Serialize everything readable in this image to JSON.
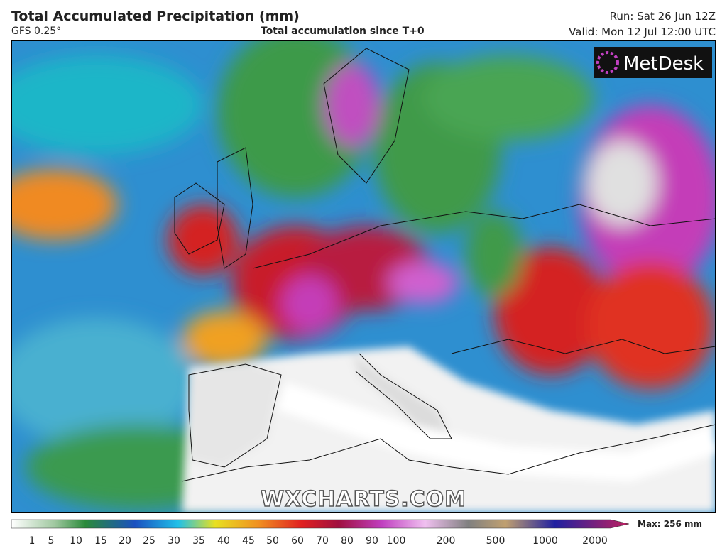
{
  "header": {
    "title": "Total Accumulated Precipitation (mm)",
    "model": "GFS 0.25°",
    "subtitle": "Total accumulation since T+0",
    "run": "Run: Sat 26 Jun 12Z",
    "valid": "Valid: Mon 12 Jul 12:00 UTC"
  },
  "logo": "MetDesk",
  "watermark": "WXCHARTS.COM",
  "legend": {
    "ticks": [
      1,
      5,
      10,
      15,
      20,
      25,
      30,
      35,
      40,
      45,
      50,
      60,
      70,
      80,
      90,
      100,
      200,
      500,
      1000,
      2000
    ],
    "max_label": "Max: 256 mm"
  }
}
